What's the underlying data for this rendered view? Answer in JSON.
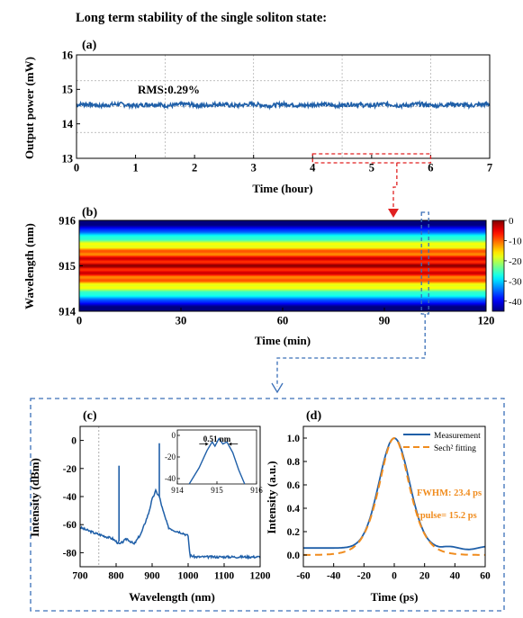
{
  "figure_title": "Long term stability of the single soliton state:",
  "colors": {
    "signal": "#1f5fa8",
    "fit": "#f08c1e",
    "dashed_red": "#e02020",
    "dashed_blue": "#3a6fb8"
  },
  "chart_data": [
    {
      "id": "a",
      "panel_label": "(a)",
      "type": "line",
      "xlabel": "Time (hour)",
      "ylabel": "Output power (mW)",
      "xlim": [
        0,
        7
      ],
      "ylim": [
        13,
        16
      ],
      "xticks": [
        0,
        1,
        2,
        3,
        4,
        5,
        6,
        7
      ],
      "yticks": [
        13,
        14,
        15,
        16
      ],
      "grid": true,
      "series": [
        {
          "mean": 14.55,
          "noise_amplitude": 0.06,
          "points": 700
        }
      ],
      "annotations": [
        {
          "text": "RMS:0.29%",
          "x": 1.3,
          "y": 14.9
        }
      ],
      "highlight_range": [
        4,
        6
      ]
    },
    {
      "id": "b",
      "panel_label": "(b)",
      "type": "heatmap",
      "xlabel": "Time (min)",
      "ylabel": "Wavelength (nm)",
      "xlim": [
        0,
        120
      ],
      "ylim": [
        914,
        916
      ],
      "xticks": [
        0,
        30,
        60,
        90,
        120
      ],
      "yticks": [
        914,
        915,
        916
      ],
      "colorbar": {
        "min": -45,
        "max": 0,
        "ticks": [
          0,
          -10,
          -20,
          -30,
          -40
        ]
      },
      "center_wavelength": 915.0,
      "highlight_time": 102
    },
    {
      "id": "c",
      "panel_label": "(c)",
      "type": "line",
      "xlabel": "Wavelength (nm)",
      "ylabel": "Intensity (dBm)",
      "xlim": [
        700,
        1200
      ],
      "ylim": [
        -90,
        10
      ],
      "xticks": [
        700,
        800,
        900,
        1000,
        1100,
        1200
      ],
      "yticks": [
        0,
        -20,
        -40,
        -60,
        -80
      ],
      "grid": false,
      "vertical_reference_x": 752,
      "spectrum": {
        "baseline_points": [
          [
            700,
            -62
          ],
          [
            740,
            -66
          ],
          [
            790,
            -70
          ],
          [
            810,
            -74
          ],
          [
            830,
            -70
          ],
          [
            850,
            -74
          ],
          [
            870,
            -66
          ],
          [
            890,
            -52
          ],
          [
            900,
            -42
          ],
          [
            910,
            -36
          ],
          [
            920,
            -40
          ],
          [
            930,
            -50
          ],
          [
            945,
            -62
          ],
          [
            960,
            -64
          ],
          [
            985,
            -66
          ],
          [
            1000,
            -68
          ],
          [
            1005,
            -82
          ],
          [
            1020,
            -83
          ],
          [
            1100,
            -83
          ],
          [
            1200,
            -83
          ]
        ],
        "peaks": [
          [
            808,
            -18
          ],
          [
            920,
            -2
          ]
        ]
      },
      "inset": {
        "xlim": [
          914,
          916
        ],
        "ylim": [
          -45,
          5
        ],
        "xticks": [
          914,
          915,
          916
        ],
        "yticks": [
          0,
          -20,
          -40
        ],
        "annotation": "0.51 nm",
        "peak_points": [
          [
            914.3,
            -45
          ],
          [
            914.55,
            -30
          ],
          [
            914.75,
            -14
          ],
          [
            914.88,
            -6
          ],
          [
            914.95,
            -10
          ],
          [
            915.05,
            -3
          ],
          [
            915.15,
            -8
          ],
          [
            915.25,
            -6
          ],
          [
            915.4,
            -16
          ],
          [
            915.55,
            -32
          ],
          [
            915.7,
            -45
          ]
        ]
      }
    },
    {
      "id": "d",
      "panel_label": "(d)",
      "type": "line",
      "xlabel": "Time (ps)",
      "ylabel": "Intensity (a.u.)",
      "xlim": [
        -60,
        60
      ],
      "ylim": [
        -0.1,
        1.1
      ],
      "xticks": [
        -60,
        -40,
        -20,
        0,
        20,
        40,
        60
      ],
      "yticks": [
        0.0,
        0.2,
        0.4,
        0.6,
        0.8,
        1.0
      ],
      "grid": false,
      "legend": {
        "placement": "top-right",
        "entries": [
          "Measurement",
          "Sech² fitting"
        ]
      },
      "series": [
        {
          "name": "Measurement",
          "fwhm_ps": 23.4,
          "offset": 0.06
        },
        {
          "name": "Sech² fitting",
          "fwhm_ps": 23.4,
          "offset": 0.0
        }
      ],
      "annotations": [
        {
          "text": "FWHM: 23.4 ps"
        },
        {
          "text": "τpulse= 15.2 ps"
        }
      ]
    }
  ]
}
